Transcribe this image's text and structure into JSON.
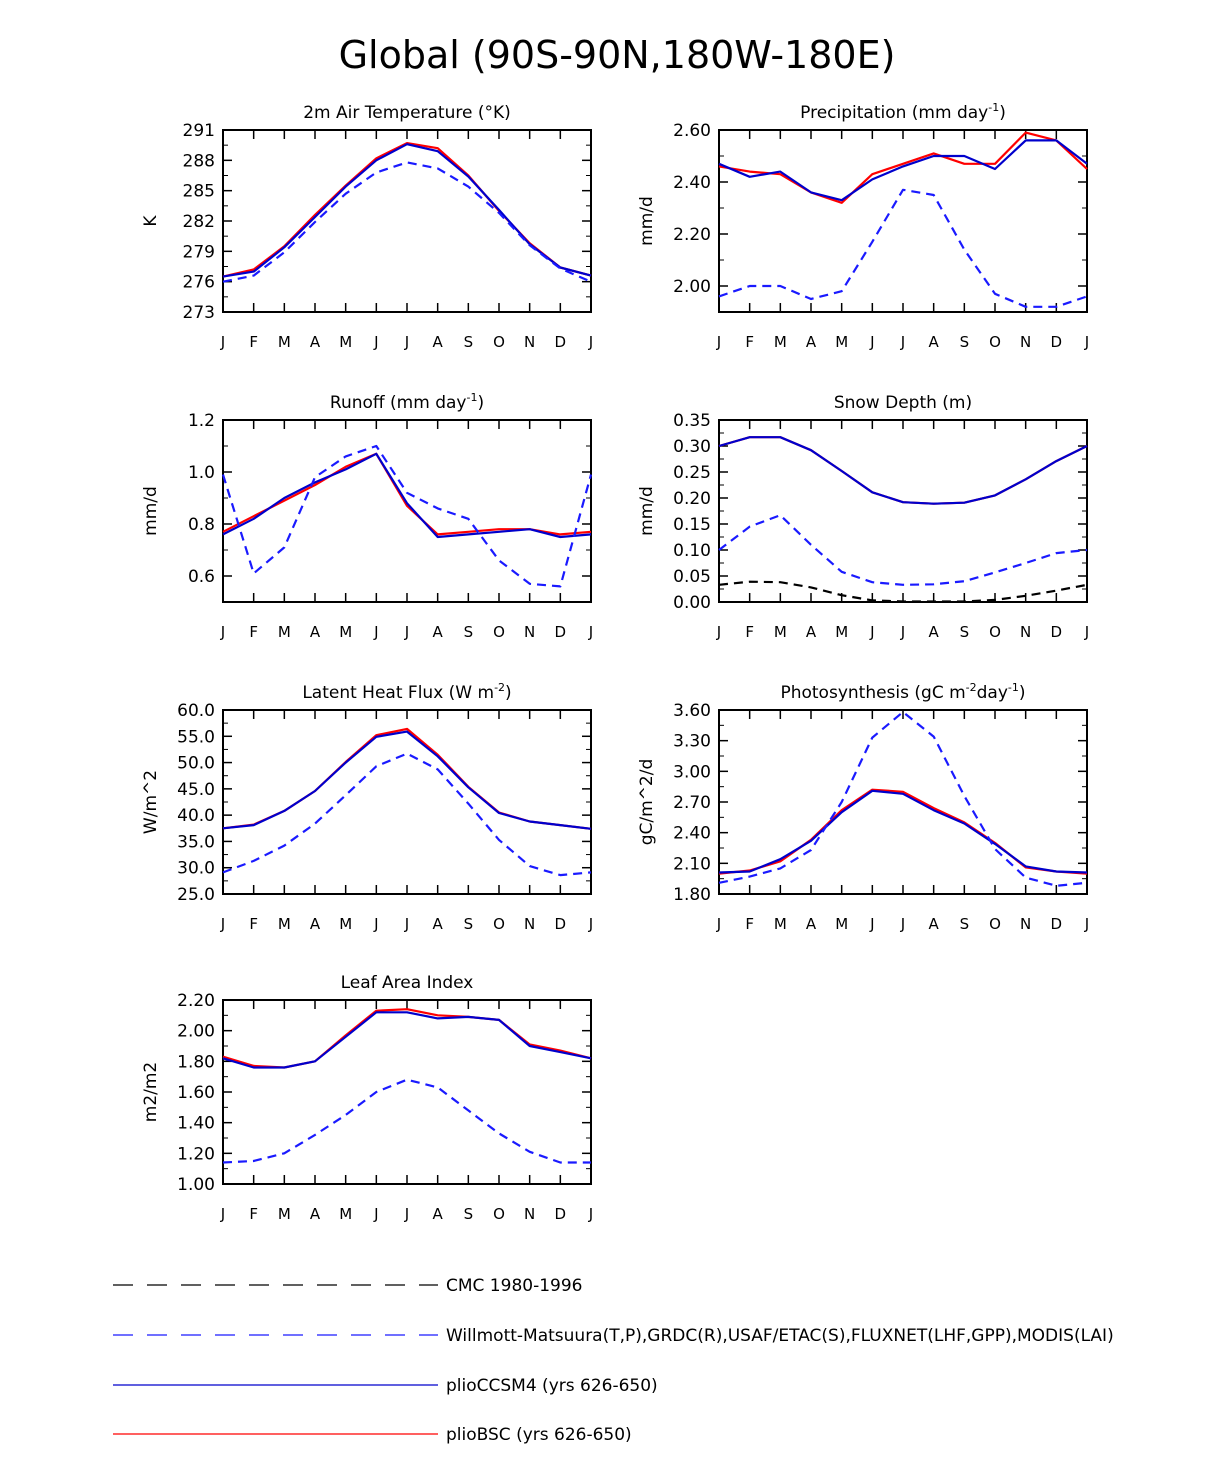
{
  "main_title": "Global (90S-90N,180W-180E)",
  "legend": [
    {
      "label": "CMC 1980-1996",
      "color": "#000000",
      "dash": "dashed"
    },
    {
      "label": "Willmott-Matsuura(T,P),GRDC(R),USAF/ETAC(S),FLUXNET(LHF,GPP),MODIS(LAI)",
      "color": "#1a1aff",
      "dash": "dashed"
    },
    {
      "label": "plioCCSM4 (yrs 626-650)",
      "color": "#0000cc",
      "dash": "solid"
    },
    {
      "label": "plioBSC (yrs 626-650)",
      "color": "#ff0000",
      "dash": "solid"
    }
  ],
  "chart_data": [
    {
      "type": "line",
      "title": "2m Air Temperature (°K)",
      "ylabel": "K",
      "x": [
        "J",
        "F",
        "M",
        "A",
        "M",
        "J",
        "J",
        "A",
        "S",
        "O",
        "N",
        "D",
        "J"
      ],
      "ylim": [
        273,
        291
      ],
      "yticks": [
        "273",
        "276",
        "279",
        "282",
        "285",
        "288",
        "291"
      ],
      "series": [
        {
          "name": "plioBSC (yrs 626-650)",
          "color": "#ff0000",
          "dash": "solid",
          "values": [
            276.5,
            277.2,
            279.5,
            282.6,
            285.5,
            288.2,
            289.7,
            289.2,
            286.5,
            283.0,
            279.8,
            277.4,
            276.6
          ]
        },
        {
          "name": "plioCCSM4 (yrs 626-650)",
          "color": "#0000cc",
          "dash": "solid",
          "values": [
            276.5,
            277.0,
            279.4,
            282.4,
            285.4,
            288.0,
            289.6,
            288.9,
            286.4,
            283.1,
            279.7,
            277.4,
            276.6
          ]
        },
        {
          "name": "Willmott-Matsuura(T,P),GRDC(R),USAF/ETAC(S),FLUXNET(LHF,GPP),MODIS(LAI)",
          "color": "#1a1aff",
          "dash": "dashed",
          "values": [
            276.0,
            276.6,
            278.9,
            281.9,
            284.7,
            286.8,
            287.8,
            287.2,
            285.4,
            282.8,
            279.6,
            277.3,
            276.0
          ]
        }
      ]
    },
    {
      "type": "line",
      "title": "Precipitation (mm day",
      "title_sup": "-1",
      "title_end": ")",
      "ylabel": "mm/d",
      "x": [
        "J",
        "F",
        "M",
        "A",
        "M",
        "J",
        "J",
        "A",
        "S",
        "O",
        "N",
        "D",
        "J"
      ],
      "ylim": [
        1.9,
        2.6
      ],
      "yticks": [
        "2.00",
        "2.20",
        "2.40",
        "2.60"
      ],
      "ytick_values": [
        2.0,
        2.2,
        2.4,
        2.6
      ],
      "series": [
        {
          "name": "plioBSC (yrs 626-650)",
          "color": "#ff0000",
          "dash": "solid",
          "values": [
            2.46,
            2.44,
            2.43,
            2.36,
            2.32,
            2.43,
            2.47,
            2.51,
            2.47,
            2.47,
            2.59,
            2.56,
            2.45
          ]
        },
        {
          "name": "plioCCSM4 (yrs 626-650)",
          "color": "#0000cc",
          "dash": "solid",
          "values": [
            2.47,
            2.42,
            2.44,
            2.36,
            2.33,
            2.41,
            2.46,
            2.5,
            2.5,
            2.45,
            2.56,
            2.56,
            2.47
          ]
        },
        {
          "name": "Willmott-Matsuura(T,P),GRDC(R),USAF/ETAC(S),FLUXNET(LHF,GPP),MODIS(LAI)",
          "color": "#1a1aff",
          "dash": "dashed",
          "values": [
            1.96,
            2.0,
            2.0,
            1.95,
            1.98,
            2.17,
            2.37,
            2.35,
            2.14,
            1.97,
            1.92,
            1.92,
            1.96
          ]
        }
      ]
    },
    {
      "type": "line",
      "title": "Runoff (mm day",
      "title_sup": "-1",
      "title_end": ")",
      "ylabel": "mm/d",
      "x": [
        "J",
        "F",
        "M",
        "A",
        "M",
        "J",
        "J",
        "A",
        "S",
        "O",
        "N",
        "D",
        "J"
      ],
      "ylim": [
        0.5,
        1.2
      ],
      "yticks": [
        "0.6",
        "0.8",
        "1.0",
        "1.2"
      ],
      "ytick_values": [
        0.6,
        0.8,
        1.0,
        1.2
      ],
      "series": [
        {
          "name": "plioBSC (yrs 626-650)",
          "color": "#ff0000",
          "dash": "solid",
          "values": [
            0.77,
            0.83,
            0.89,
            0.95,
            1.02,
            1.07,
            0.87,
            0.76,
            0.77,
            0.78,
            0.78,
            0.76,
            0.77
          ]
        },
        {
          "name": "plioCCSM4 (yrs 626-650)",
          "color": "#0000cc",
          "dash": "solid",
          "values": [
            0.76,
            0.82,
            0.9,
            0.96,
            1.01,
            1.07,
            0.88,
            0.75,
            0.76,
            0.77,
            0.78,
            0.75,
            0.76
          ]
        },
        {
          "name": "Willmott-Matsuura(T,P),GRDC(R),USAF/ETAC(S),FLUXNET(LHF,GPP),MODIS(LAI)",
          "color": "#1a1aff",
          "dash": "dashed",
          "values": [
            0.99,
            0.61,
            0.71,
            0.98,
            1.06,
            1.1,
            0.92,
            0.86,
            0.82,
            0.66,
            0.57,
            0.56,
            0.99
          ]
        }
      ]
    },
    {
      "type": "line",
      "title": "Snow Depth (m)",
      "ylabel": "mm/d",
      "x": [
        "J",
        "F",
        "M",
        "A",
        "M",
        "J",
        "J",
        "A",
        "S",
        "O",
        "N",
        "D",
        "J"
      ],
      "ylim": [
        0,
        0.35
      ],
      "yticks": [
        "0.00",
        "0.05",
        "0.10",
        "0.15",
        "0.20",
        "0.25",
        "0.30",
        "0.35"
      ],
      "ytick_values": [
        0,
        0.05,
        0.1,
        0.15,
        0.2,
        0.25,
        0.3,
        0.35
      ],
      "series": [
        {
          "name": "plioBSC (yrs 626-650)",
          "color": "#ff0000",
          "dash": "solid",
          "values": [
            0.3,
            0.317,
            0.317,
            0.292,
            0.252,
            0.211,
            0.192,
            0.189,
            0.191,
            0.205,
            0.236,
            0.271,
            0.3
          ]
        },
        {
          "name": "plioCCSM4 (yrs 626-650)",
          "color": "#0000cc",
          "dash": "solid",
          "values": [
            0.3,
            0.317,
            0.317,
            0.292,
            0.252,
            0.211,
            0.192,
            0.189,
            0.191,
            0.205,
            0.236,
            0.271,
            0.3
          ]
        },
        {
          "name": "Willmott-Matsuura(T,P),GRDC(R),USAF/ETAC(S),FLUXNET(LHF,GPP),MODIS(LAI)",
          "color": "#1a1aff",
          "dash": "dashed",
          "values": [
            0.1,
            0.145,
            0.167,
            0.11,
            0.058,
            0.038,
            0.033,
            0.034,
            0.04,
            0.057,
            0.075,
            0.094,
            0.1
          ]
        },
        {
          "name": "CMC 1980-1996",
          "color": "#000000",
          "dash": "dashed",
          "values": [
            0.033,
            0.039,
            0.038,
            0.028,
            0.013,
            0.003,
            0.001,
            0.001,
            0.001,
            0.004,
            0.012,
            0.022,
            0.033
          ]
        }
      ]
    },
    {
      "type": "line",
      "title": "Latent Heat Flux (W m",
      "title_sup": "-2",
      "title_end": ")",
      "ylabel": "W/m^2",
      "x": [
        "J",
        "F",
        "M",
        "A",
        "M",
        "J",
        "J",
        "A",
        "S",
        "O",
        "N",
        "D",
        "J"
      ],
      "ylim": [
        25,
        60
      ],
      "yticks": [
        "25.0",
        "30.0",
        "35.0",
        "40.0",
        "45.0",
        "50.0",
        "55.0",
        "60.0"
      ],
      "ytick_values": [
        25,
        30,
        35,
        40,
        45,
        50,
        55,
        60
      ],
      "series": [
        {
          "name": "plioBSC (yrs 626-650)",
          "color": "#ff0000",
          "dash": "solid",
          "values": [
            37.5,
            38.2,
            40.8,
            44.6,
            50.1,
            55.2,
            56.4,
            51.5,
            45.4,
            40.5,
            38.8,
            38.1,
            37.4
          ]
        },
        {
          "name": "plioCCSM4 (yrs 626-650)",
          "color": "#0000cc",
          "dash": "solid",
          "values": [
            37.5,
            38.1,
            40.8,
            44.6,
            50.0,
            54.9,
            55.9,
            51.2,
            45.3,
            40.4,
            38.8,
            38.1,
            37.4
          ]
        },
        {
          "name": "Willmott-Matsuura(T,P),GRDC(R),USAF/ETAC(S),FLUXNET(LHF,GPP),MODIS(LAI)",
          "color": "#1a1aff",
          "dash": "dashed",
          "values": [
            29.1,
            31.3,
            34.2,
            38.4,
            43.8,
            49.3,
            51.7,
            48.7,
            42.2,
            35.3,
            30.3,
            28.6,
            29.1
          ]
        }
      ]
    },
    {
      "type": "line",
      "title": "Photosynthesis (gC m",
      "title_sup": "-2",
      "title_mid": "day",
      "title_sup2": "-1",
      "title_end": ")",
      "ylabel": "gC/m^2/d",
      "x": [
        "J",
        "F",
        "M",
        "A",
        "M",
        "J",
        "J",
        "A",
        "S",
        "O",
        "N",
        "D",
        "J"
      ],
      "ylim": [
        1.8,
        3.6
      ],
      "yticks": [
        "1.80",
        "2.10",
        "2.40",
        "2.70",
        "3.00",
        "3.30",
        "3.60"
      ],
      "ytick_values": [
        1.8,
        2.1,
        2.4,
        2.7,
        3.0,
        3.3,
        3.6
      ],
      "series": [
        {
          "name": "plioBSC (yrs 626-650)",
          "color": "#ff0000",
          "dash": "solid",
          "values": [
            2.0,
            2.03,
            2.12,
            2.33,
            2.62,
            2.82,
            2.8,
            2.64,
            2.5,
            2.3,
            2.06,
            2.02,
            2.0
          ]
        },
        {
          "name": "plioCCSM4 (yrs 626-650)",
          "color": "#0000cc",
          "dash": "solid",
          "values": [
            2.01,
            2.02,
            2.14,
            2.32,
            2.6,
            2.81,
            2.78,
            2.62,
            2.49,
            2.29,
            2.07,
            2.02,
            2.01
          ]
        },
        {
          "name": "Willmott-Matsuura(T,P),GRDC(R),USAF/ETAC(S),FLUXNET(LHF,GPP),MODIS(LAI)",
          "color": "#1a1aff",
          "dash": "dashed",
          "values": [
            1.91,
            1.97,
            2.05,
            2.23,
            2.7,
            3.33,
            3.58,
            3.34,
            2.76,
            2.24,
            1.96,
            1.88,
            1.91
          ]
        }
      ]
    },
    {
      "type": "line",
      "title": "Leaf Area Index",
      "ylabel": "m2/m2",
      "x": [
        "J",
        "F",
        "M",
        "A",
        "M",
        "J",
        "J",
        "A",
        "S",
        "O",
        "N",
        "D",
        "J"
      ],
      "ylim": [
        1.0,
        2.2
      ],
      "yticks": [
        "1.00",
        "1.20",
        "1.40",
        "1.60",
        "1.80",
        "2.00",
        "2.20"
      ],
      "ytick_values": [
        1.0,
        1.2,
        1.4,
        1.6,
        1.8,
        2.0,
        2.2
      ],
      "series": [
        {
          "name": "plioBSC (yrs 626-650)",
          "color": "#ff0000",
          "dash": "solid",
          "values": [
            1.83,
            1.77,
            1.76,
            1.8,
            1.97,
            2.13,
            2.14,
            2.1,
            2.09,
            2.07,
            1.91,
            1.87,
            1.82
          ]
        },
        {
          "name": "plioCCSM4 (yrs 626-650)",
          "color": "#0000cc",
          "dash": "solid",
          "values": [
            1.82,
            1.76,
            1.76,
            1.8,
            1.96,
            2.12,
            2.12,
            2.08,
            2.09,
            2.07,
            1.9,
            1.86,
            1.82
          ]
        },
        {
          "name": "Willmott-Matsuura(T,P),GRDC(R),USAF/ETAC(S),FLUXNET(LHF,GPP),MODIS(LAI)",
          "color": "#1a1aff",
          "dash": "dashed",
          "values": [
            1.14,
            1.15,
            1.2,
            1.32,
            1.45,
            1.6,
            1.68,
            1.63,
            1.48,
            1.33,
            1.21,
            1.14,
            1.14
          ]
        }
      ]
    }
  ]
}
